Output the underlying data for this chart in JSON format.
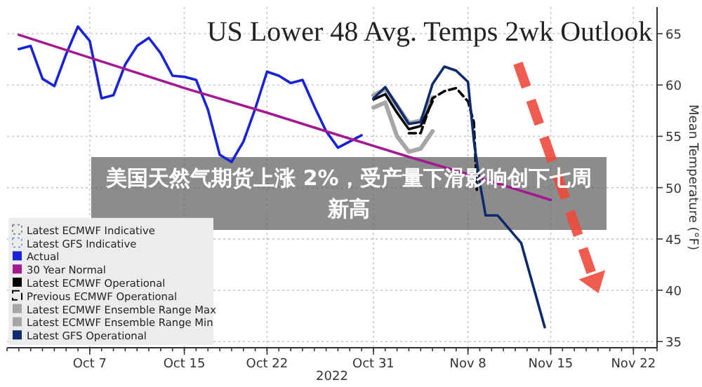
{
  "chart_data": {
    "type": "line",
    "title": "US Lower 48 Avg. Temps 2wk Outlook",
    "xlabel": "2022",
    "ylabel": "Mean Temperature (°F)",
    "annotations": [
      "美国天然气期货上涨 2%，受产量下滑影响创下七周新高"
    ],
    "xlim": [
      "2022-09-30",
      "2022-11-24"
    ],
    "ylim": [
      34.4,
      67.6
    ],
    "xticks": [
      {
        "value": "2022-10-07",
        "label": "Oct 7"
      },
      {
        "value": "2022-10-15",
        "label": "Oct 15"
      },
      {
        "value": "2022-10-22",
        "label": "Oct 22"
      },
      {
        "value": "2022-10-31",
        "label": "Oct 31"
      },
      {
        "value": "2022-11-08",
        "label": "Nov 8"
      },
      {
        "value": "2022-11-15",
        "label": "Nov 15"
      },
      {
        "value": "2022-11-22",
        "label": "Nov 22"
      }
    ],
    "yticks": [
      35,
      40,
      45,
      50,
      55,
      60,
      65
    ],
    "grid": true,
    "legend": "bottom left",
    "series": [
      {
        "name": "Latest ECMWF Indicative",
        "color": "#8c8c8c",
        "line_style": "dotted"
      },
      {
        "name": "Latest GFS Indicative",
        "color": "#8fa3c8",
        "line_style": "dotted"
      },
      {
        "name": "Actual",
        "color": "#1a22d8",
        "x": [
          "2022-10-01",
          "2022-10-02",
          "2022-10-03",
          "2022-10-04",
          "2022-10-05",
          "2022-10-06",
          "2022-10-07",
          "2022-10-08",
          "2022-10-09",
          "2022-10-10",
          "2022-10-11",
          "2022-10-12",
          "2022-10-13",
          "2022-10-14",
          "2022-10-15",
          "2022-10-16",
          "2022-10-17",
          "2022-10-18",
          "2022-10-19",
          "2022-10-20",
          "2022-10-21",
          "2022-10-22",
          "2022-10-23",
          "2022-10-24",
          "2022-10-25",
          "2022-10-26",
          "2022-10-27",
          "2022-10-28",
          "2022-10-29",
          "2022-10-30"
        ],
        "values": [
          63.5,
          63.8,
          60.6,
          59.9,
          63,
          65.7,
          64.3,
          58.7,
          59,
          62,
          63.8,
          64.6,
          63.1,
          60.9,
          60.8,
          60.5,
          57.6,
          53.2,
          52.5,
          54.5,
          57.7,
          61.3,
          60.9,
          60.2,
          60.5,
          57.9,
          55.5,
          53.9,
          54.5,
          55.1
        ]
      },
      {
        "name": "30 Year Normal",
        "color": "#a3198f",
        "x": [
          "2022-10-01",
          "2022-10-08",
          "2022-10-15",
          "2022-10-22",
          "2022-10-27",
          "2022-11-03",
          "2022-11-08",
          "2022-11-15"
        ],
        "values": [
          64.9,
          62.3,
          59.7,
          57.3,
          55.5,
          53,
          51.3,
          48.8
        ]
      },
      {
        "name": "Latest ECMWF Operational",
        "color": "#000000",
        "x": [
          "2022-10-31",
          "2022-11-01",
          "2022-11-02",
          "2022-11-03",
          "2022-11-04",
          "2022-11-05"
        ],
        "values": [
          58.6,
          59.1,
          57.3,
          55.7,
          56,
          58.4
        ]
      },
      {
        "name": "Previous ECMWF Operational",
        "color": "#000000",
        "line_style": "dashed",
        "x": [
          "2022-11-03",
          "2022-11-04",
          "2022-11-05",
          "2022-11-06",
          "2022-11-07",
          "2022-11-08",
          "2022-11-08T12:00",
          "2022-11-08T18:00"
        ],
        "values": [
          55.3,
          55.3,
          58.7,
          59.4,
          59.7,
          58.4,
          56.4,
          49.8
        ]
      },
      {
        "name": "Latest ECMWF Ensemble Range Max",
        "color": "#a6a6a6",
        "x": [
          "2022-10-31",
          "2022-11-01",
          "2022-11-02",
          "2022-11-03",
          "2022-11-04",
          "2022-11-05"
        ],
        "values": [
          59,
          59.6,
          58,
          56.3,
          56.5,
          58.8
        ]
      },
      {
        "name": "Latest ECMWF Ensemble Range Min",
        "color": "#a6a6a6",
        "x": [
          "2022-10-31",
          "2022-11-01",
          "2022-11-02",
          "2022-11-03",
          "2022-11-04",
          "2022-11-05"
        ],
        "values": [
          57.8,
          58.3,
          55,
          53.5,
          53.8,
          55.5
        ]
      },
      {
        "name": "Latest GFS Operational",
        "color": "#0d2a6b",
        "x": [
          "2022-10-31",
          "2022-11-01",
          "2022-11-03",
          "2022-11-04",
          "2022-11-05",
          "2022-11-06",
          "2022-11-07",
          "2022-11-08",
          "2022-11-08T12:00",
          "2022-11-09",
          "2022-11-09T12:00",
          "2022-11-10T12:00",
          "2022-11-12T12:00",
          "2022-11-13T12:00",
          "2022-11-14T12:00"
        ],
        "values": [
          58.7,
          59.8,
          56.2,
          56.4,
          60.1,
          61.8,
          61.4,
          60.3,
          54.6,
          50.5,
          47.3,
          47.3,
          44.6,
          40.5,
          36.4
        ]
      }
    ]
  }
}
